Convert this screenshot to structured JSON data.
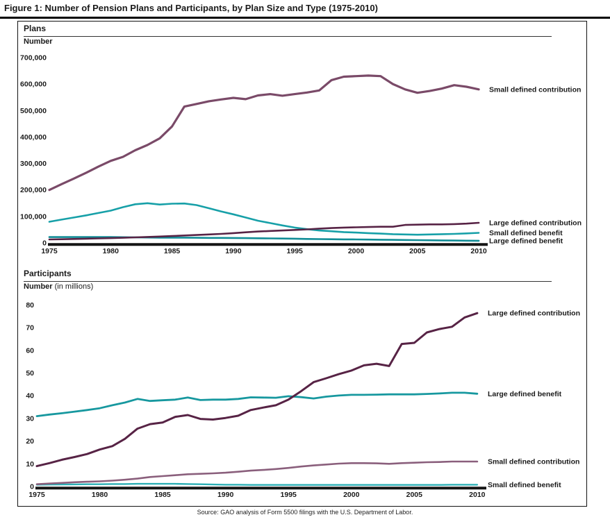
{
  "figure_title": "Figure 1: Number of Pension Plans and Participants, by Plan Size and Type (1975-2010)",
  "source_note": "Source: GAO analysis of Form 5500 filings with the U.S. Department of Labor.",
  "colors": {
    "large_defined_contribution": "#572345",
    "small_defined_contribution": "#7a4a68",
    "small_defined_benefit_teal": "#17a0a8",
    "large_defined_benefit_teal": "#108c96",
    "axis_black": "#151515"
  },
  "chart_data": [
    {
      "id": "plans",
      "type": "line",
      "section_label": "Plans",
      "axis_title": "Number",
      "axis_title_suffix": "",
      "x_start": 1975,
      "x_end": 2010,
      "x_ticks": [
        1975,
        1980,
        1985,
        1990,
        1995,
        2000,
        2005,
        2010
      ],
      "x_tick_labels": [
        "1975",
        "1980",
        "1985",
        "1990",
        "1995",
        "2000",
        "2005",
        "2010"
      ],
      "ylim": [
        0,
        700000
      ],
      "y_ticks": [
        0,
        100000,
        200000,
        300000,
        400000,
        500000,
        600000,
        700000
      ],
      "y_tick_labels": [
        "0",
        "100,000",
        "200,000",
        "300,000",
        "400,000",
        "500,000",
        "600,000",
        "700,000"
      ],
      "grid": false,
      "legend_position": "right-of-line-ends",
      "series": [
        {
          "name": "Small defined benefit",
          "color": "#17a0a8",
          "width": 2.6,
          "values": [
            80000,
            88000,
            96000,
            104000,
            113000,
            122000,
            135000,
            146000,
            150000,
            145000,
            148000,
            149000,
            143000,
            131000,
            119000,
            108000,
            96000,
            84000,
            75000,
            66000,
            58000,
            52000,
            47000,
            44000,
            41000,
            39000,
            37000,
            35000,
            33000,
            32000,
            31000,
            32000,
            33000,
            34000,
            36000,
            38000
          ]
        },
        {
          "name": "Large defined benefit",
          "color": "#108c96",
          "width": 2.6,
          "values": [
            22000,
            22000,
            22000,
            22000,
            22000,
            22000,
            21500,
            21000,
            20500,
            20000,
            20000,
            20000,
            19500,
            19000,
            19000,
            18500,
            18000,
            17500,
            17000,
            16500,
            16000,
            15000,
            14500,
            14000,
            13500,
            13000,
            12500,
            12000,
            11500,
            11000,
            10500,
            10000,
            9500,
            9000,
            8500,
            8000
          ]
        },
        {
          "name": "Large defined contribution",
          "color": "#572345",
          "width": 2.6,
          "values": [
            13000,
            14000,
            15000,
            16000,
            17000,
            18000,
            19500,
            21000,
            22500,
            24000,
            26000,
            28000,
            30000,
            32000,
            34000,
            37000,
            40000,
            43000,
            45000,
            47000,
            49000,
            51000,
            54000,
            56000,
            58000,
            59000,
            60000,
            61000,
            61000,
            68000,
            69000,
            70000,
            70000,
            71000,
            73000,
            76000
          ]
        },
        {
          "name": "Small defined contribution",
          "color": "#7a4a68",
          "width": 3.2,
          "values": [
            200000,
            222000,
            243000,
            265000,
            288000,
            310000,
            325000,
            350000,
            370000,
            395000,
            440000,
            515000,
            525000,
            535000,
            542000,
            548000,
            543000,
            557000,
            562000,
            556000,
            562000,
            568000,
            576000,
            615000,
            628000,
            630000,
            632000,
            630000,
            600000,
            580000,
            567000,
            574000,
            583000,
            596000,
            590000,
            580000
          ]
        }
      ]
    },
    {
      "id": "participants",
      "type": "line",
      "section_label": "Participants",
      "axis_title": "Number",
      "axis_title_suffix": " (in millions)",
      "x_start": 1975,
      "x_end": 2010,
      "x_ticks": [
        1975,
        1980,
        1985,
        1990,
        1995,
        2000,
        2005,
        2010
      ],
      "x_tick_labels": [
        "1975",
        "1980",
        "1985",
        "1990",
        "1995",
        "2000",
        "2005",
        "2010"
      ],
      "ylim": [
        0,
        80
      ],
      "y_ticks": [
        0,
        10,
        20,
        30,
        40,
        50,
        60,
        70,
        80
      ],
      "y_tick_labels": [
        "0",
        "10",
        "20",
        "30",
        "40",
        "50",
        "60",
        "70",
        "80"
      ],
      "grid": false,
      "legend_position": "right-of-line-ends",
      "series": [
        {
          "name": "Small defined benefit",
          "color": "#2bafb5",
          "width": 2.4,
          "values": [
            0.8,
            0.85,
            0.9,
            0.95,
            1,
            1,
            1.1,
            1.1,
            1.2,
            1.2,
            1.2,
            1.2,
            1.1,
            1,
            0.9,
            0.8,
            0.8,
            0.7,
            0.7,
            0.7,
            0.7,
            0.7,
            0.7,
            0.7,
            0.7,
            0.7,
            0.7,
            0.7,
            0.7,
            0.7,
            0.7,
            0.7,
            0.7,
            0.8,
            0.8,
            0.8
          ]
        },
        {
          "name": "Small defined contribution",
          "color": "#8a5f7c",
          "width": 2.6,
          "values": [
            1,
            1.3,
            1.6,
            1.9,
            2.1,
            2.3,
            2.6,
            3,
            3.5,
            4.2,
            4.6,
            5,
            5.4,
            5.6,
            5.8,
            6.1,
            6.5,
            7,
            7.3,
            7.7,
            8.2,
            8.8,
            9.3,
            9.7,
            10.1,
            10.3,
            10.3,
            10.2,
            10,
            10.3,
            10.5,
            10.7,
            10.8,
            11,
            11,
            11
          ]
        },
        {
          "name": "Large defined benefit",
          "color": "#17989f",
          "width": 2.8,
          "values": [
            31,
            31.7,
            32.3,
            33,
            33.7,
            34.5,
            35.8,
            37,
            38.6,
            37.7,
            38,
            38.3,
            39.2,
            38.1,
            38.3,
            38.3,
            38.6,
            39.3,
            39.2,
            39.1,
            39.8,
            39.4,
            38.8,
            39.6,
            40.1,
            40.4,
            40.4,
            40.5,
            40.6,
            40.6,
            40.6,
            40.8,
            41,
            41.3,
            41.3,
            40.9
          ]
        },
        {
          "name": "Large defined contribution",
          "color": "#572345",
          "width": 3,
          "values": [
            9,
            10.3,
            11.8,
            13,
            14.3,
            16.3,
            17.8,
            21,
            25.5,
            27.5,
            28.2,
            30.7,
            31.5,
            29.8,
            29.5,
            30.2,
            31.2,
            33.7,
            34.8,
            35.8,
            38.3,
            42,
            46,
            47.7,
            49.5,
            51.1,
            53.4,
            54.1,
            53.1,
            62.8,
            63.3,
            67.9,
            69.4,
            70.4,
            74.5,
            76.4
          ]
        }
      ]
    }
  ]
}
